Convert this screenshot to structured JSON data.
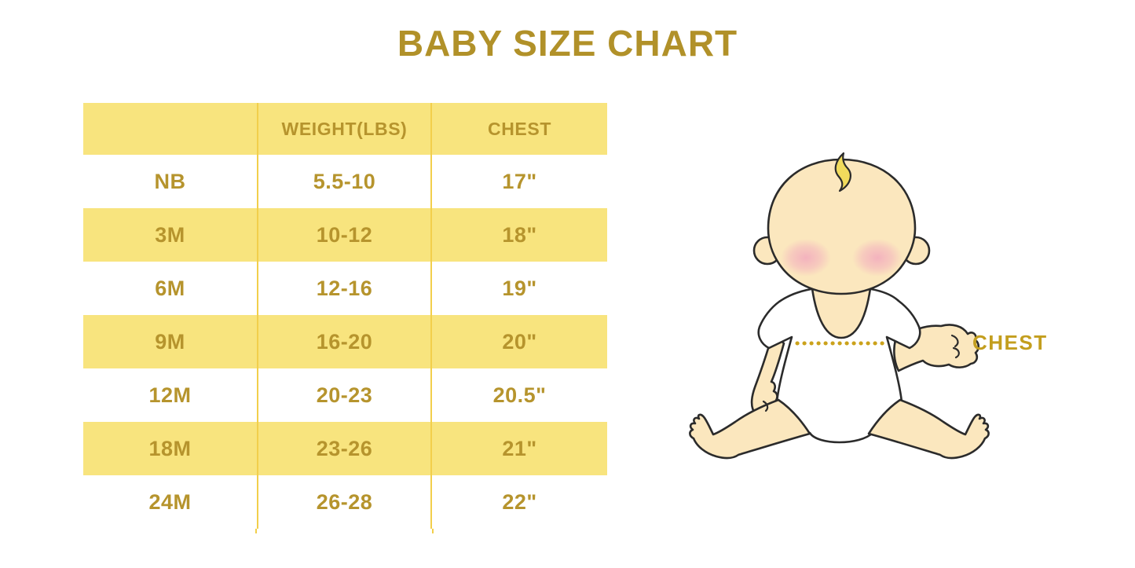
{
  "title": "BABY SIZE CHART",
  "table": {
    "headers": [
      "",
      "WEIGHT(LBS)",
      "CHEST"
    ],
    "rows": [
      [
        "NB",
        "5.5-10",
        "17\""
      ],
      [
        "3M",
        "10-12",
        "18\""
      ],
      [
        "6M",
        "12-16",
        "19\""
      ],
      [
        "9M",
        "16-20",
        "20\""
      ],
      [
        "12M",
        "20-23",
        "20.5\""
      ],
      [
        "18M",
        "23-26",
        "21\""
      ],
      [
        "24M",
        "26-28",
        "22\""
      ]
    ]
  },
  "illustration": {
    "label": "CHEST"
  },
  "colors": {
    "background": "#FFFFFF",
    "title_gold": "#B19129",
    "cell_text_gold": "#B6942D",
    "row_yellow": "#F8E47E",
    "divider_gold": "#F2CF4B",
    "label_gold": "#C39E1E",
    "dot_gold": "#CBA21B",
    "baby_skin": "#FBE7BE",
    "baby_shirt": "#FFFFFF",
    "baby_hair": "#F1DB5C",
    "baby_cheek": "#F2A9BE",
    "baby_outline": "#2B2B2B"
  }
}
